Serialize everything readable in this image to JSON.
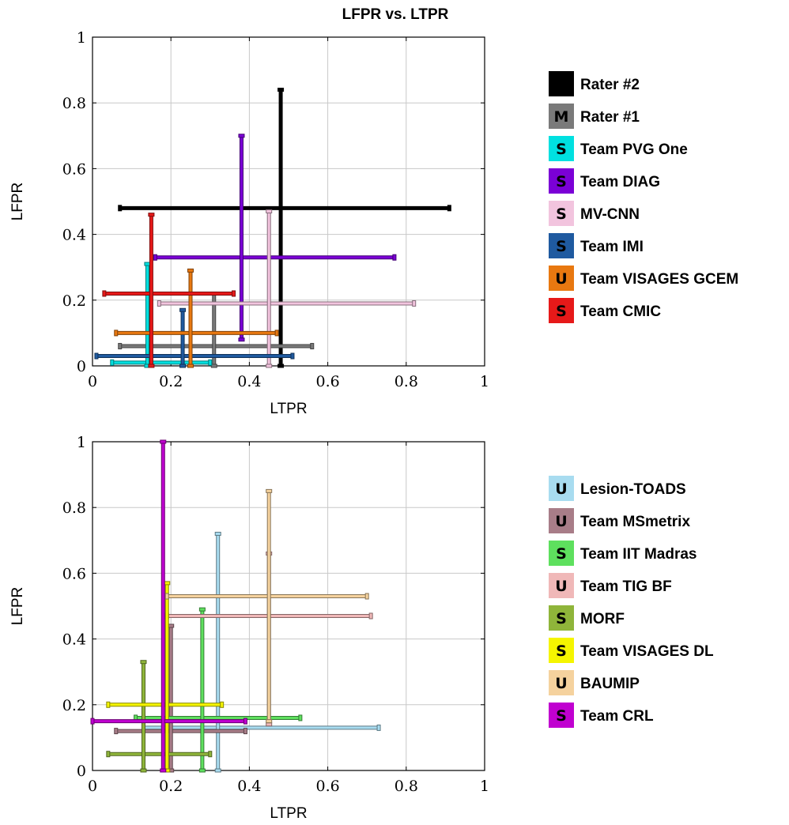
{
  "title": "LFPR vs. LTPR",
  "chart_data": [
    {
      "type": "scatter",
      "xlabel": "LTPR",
      "ylabel": "LFPR",
      "xlim": [
        0,
        1
      ],
      "ylim": [
        0,
        1
      ],
      "xticks": [
        "0",
        "0.2",
        "0.4",
        "0.6",
        "0.8",
        "1"
      ],
      "yticks": [
        "0",
        "0.2",
        "0.4",
        "0.6",
        "0.8",
        "1"
      ],
      "grid": true,
      "legend_position": "right",
      "series": [
        {
          "name": "Rater #2",
          "marker": "",
          "color": "#000000",
          "x": 0.48,
          "x_range": [
            0.07,
            0.91
          ],
          "y": 0.48,
          "y_range": [
            0.0,
            0.84
          ]
        },
        {
          "name": "Rater #1",
          "marker": "M",
          "color": "#7a7a7a",
          "x": 0.31,
          "x_range": [
            0.07,
            0.56
          ],
          "y": 0.06,
          "y_range": [
            0.0,
            0.22
          ]
        },
        {
          "name": "Team PVG One",
          "marker": "S",
          "color": "#00e0e0",
          "x": 0.14,
          "x_range": [
            0.05,
            0.3
          ],
          "y": 0.01,
          "y_range": [
            0.0,
            0.31
          ]
        },
        {
          "name": "Team DIAG",
          "marker": "S",
          "color": "#7b00d6",
          "x": 0.38,
          "x_range": [
            0.16,
            0.77
          ],
          "y": 0.33,
          "y_range": [
            0.08,
            0.7
          ]
        },
        {
          "name": "MV-CNN",
          "marker": "S",
          "color": "#f2c4de",
          "x": 0.45,
          "x_range": [
            0.17,
            0.82
          ],
          "y": 0.19,
          "y_range": [
            0.0,
            0.47
          ]
        },
        {
          "name": "Team IMI",
          "marker": "S",
          "color": "#1f5aa0",
          "x": 0.23,
          "x_range": [
            0.01,
            0.51
          ],
          "y": 0.03,
          "y_range": [
            0.0,
            0.17
          ]
        },
        {
          "name": "Team VISAGES GCEM",
          "marker": "U",
          "color": "#e87810",
          "x": 0.25,
          "x_range": [
            0.06,
            0.47
          ],
          "y": 0.1,
          "y_range": [
            0.0,
            0.29
          ]
        },
        {
          "name": "Team CMIC",
          "marker": "S",
          "color": "#e61919",
          "x": 0.15,
          "x_range": [
            0.03,
            0.36
          ],
          "y": 0.22,
          "y_range": [
            0.0,
            0.46
          ]
        }
      ]
    },
    {
      "type": "scatter",
      "xlabel": "LTPR",
      "ylabel": "LFPR",
      "xlim": [
        0,
        1
      ],
      "ylim": [
        0,
        1
      ],
      "xticks": [
        "0",
        "0.2",
        "0.4",
        "0.6",
        "0.8",
        "1"
      ],
      "yticks": [
        "0",
        "0.2",
        "0.4",
        "0.6",
        "0.8",
        "1"
      ],
      "grid": true,
      "legend_position": "right",
      "series": [
        {
          "name": "Lesion-TOADS",
          "marker": "U",
          "color": "#a8dcf0",
          "x": 0.32,
          "x_range": [
            0.13,
            0.73
          ],
          "y": 0.13,
          "y_range": [
            0.0,
            0.72
          ]
        },
        {
          "name": "Team MSmetrix",
          "marker": "U",
          "color": "#a87d88",
          "x": 0.2,
          "x_range": [
            0.06,
            0.39
          ],
          "y": 0.12,
          "y_range": [
            0.0,
            0.44
          ]
        },
        {
          "name": "Team IIT Madras",
          "marker": "S",
          "color": "#5ee05e",
          "x": 0.28,
          "x_range": [
            0.11,
            0.53
          ],
          "y": 0.16,
          "y_range": [
            0.0,
            0.49
          ]
        },
        {
          "name": "Team TIG BF",
          "marker": "U",
          "color": "#f0b8b8",
          "x": 0.45,
          "x_range": [
            0.19,
            0.71
          ],
          "y": 0.47,
          "y_range": [
            0.14,
            0.66
          ]
        },
        {
          "name": "MORF",
          "marker": "S",
          "color": "#8fb53a",
          "x": 0.13,
          "x_range": [
            0.04,
            0.3
          ],
          "y": 0.05,
          "y_range": [
            0.0,
            0.33
          ]
        },
        {
          "name": "Team VISAGES DL",
          "marker": "S",
          "color": "#f5f500",
          "x": 0.19,
          "x_range": [
            0.04,
            0.33
          ],
          "y": 0.2,
          "y_range": [
            0.0,
            0.57
          ]
        },
        {
          "name": "BAUMIP",
          "marker": "U",
          "color": "#f5d29e",
          "x": 0.45,
          "x_range": [
            0.19,
            0.7
          ],
          "y": 0.53,
          "y_range": [
            0.15,
            0.85
          ]
        },
        {
          "name": "Team CRL",
          "marker": "S",
          "color": "#c000d0",
          "x": 0.18,
          "x_range": [
            0.0,
            0.39
          ],
          "y": 0.15,
          "y_range": [
            0.0,
            1.0
          ]
        }
      ]
    }
  ]
}
